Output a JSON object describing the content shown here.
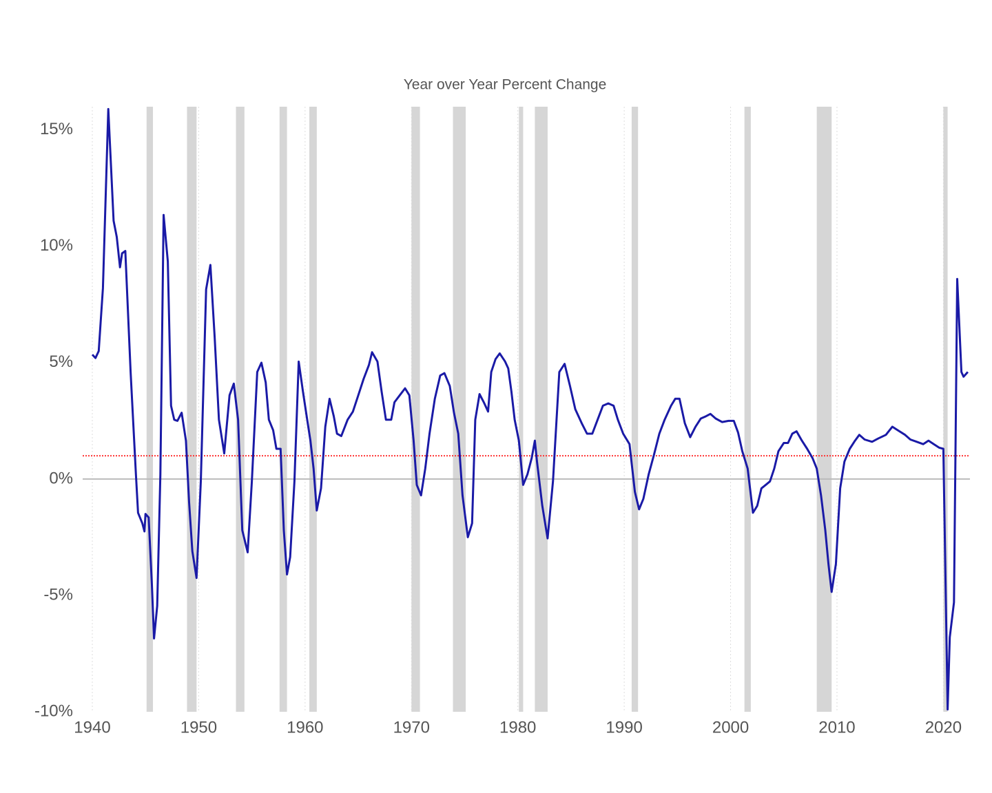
{
  "chart_data": {
    "type": "line",
    "title": "Year over Year Percent Change",
    "x": [
      1940.0,
      1940.3,
      1940.6,
      1941.0,
      1941.5,
      1942.0,
      1942.3,
      1942.6,
      1942.8,
      1943.1,
      1943.6,
      1944.1,
      1944.3,
      1944.7,
      1944.9,
      1945.0,
      1945.3,
      1945.6,
      1945.8,
      1946.1,
      1946.4,
      1946.7,
      1947.1,
      1947.4,
      1947.7,
      1948.0,
      1948.4,
      1948.8,
      1949.1,
      1949.4,
      1949.8,
      1950.2,
      1950.7,
      1951.1,
      1951.5,
      1951.9,
      1952.4,
      1952.9,
      1953.3,
      1953.7,
      1954.1,
      1954.6,
      1955.0,
      1955.5,
      1955.9,
      1956.3,
      1956.6,
      1957.0,
      1957.3,
      1957.7,
      1958.0,
      1958.3,
      1958.6,
      1959.0,
      1959.4,
      1959.8,
      1960.1,
      1960.5,
      1960.8,
      1961.1,
      1961.5,
      1961.9,
      1962.3,
      1962.7,
      1963.0,
      1963.4,
      1964.0,
      1964.5,
      1965.0,
      1965.5,
      1966.0,
      1966.3,
      1966.8,
      1967.2,
      1967.6,
      1968.1,
      1968.4,
      1968.9,
      1969.4,
      1969.8,
      1970.2,
      1970.5,
      1970.9,
      1971.3,
      1971.7,
      1972.2,
      1972.7,
      1973.1,
      1973.6,
      1974.0,
      1974.4,
      1974.8,
      1975.3,
      1975.7,
      1976.0,
      1976.4,
      1976.8,
      1977.2,
      1977.5,
      1977.9,
      1978.3,
      1978.8,
      1979.1,
      1979.4,
      1979.7,
      1980.1,
      1980.5,
      1980.9,
      1981.3,
      1981.6,
      1981.8,
      1982.3,
      1982.8,
      1983.3,
      1983.9,
      1984.4,
      1984.9,
      1985.4,
      1986.0,
      1986.5,
      1987.0,
      1987.5,
      1988.0,
      1988.5,
      1989.0,
      1989.4,
      1989.9,
      1990.5,
      1991.0,
      1991.4,
      1991.8,
      1992.3,
      1992.8,
      1993.3,
      1993.8,
      1994.4,
      1994.8,
      1995.2,
      1995.7,
      1996.2,
      1996.7,
      1997.2,
      1997.7,
      1998.1,
      1998.6,
      1999.2,
      1999.8,
      2000.3,
      2000.7,
      2001.1,
      2001.6,
      2002.1,
      2002.5,
      2002.9,
      2003.3,
      2003.7,
      2004.1,
      2004.5,
      2005.0,
      2005.4,
      2005.8,
      2006.2,
      2006.7,
      2007.2,
      2007.7,
      2008.1,
      2008.5,
      2008.9,
      2009.2,
      2009.5,
      2009.9,
      2010.3,
      2010.7,
      2011.2,
      2011.7,
      2012.1,
      2012.6,
      2013.3,
      2013.9,
      2014.6,
      2015.2,
      2015.7,
      2016.4,
      2016.9,
      2017.5,
      2018.1,
      2018.6,
      2019.1,
      2019.6,
      2020.0,
      2020.4,
      2020.6,
      2021.0,
      2021.3,
      2021.7,
      2021.9,
      2022.3
    ],
    "values": [
      5.35,
      5.2,
      5.5,
      8.2,
      15.9,
      11.1,
      10.4,
      9.1,
      9.7,
      9.8,
      4.6,
      0.2,
      -1.45,
      -1.9,
      -2.25,
      -1.5,
      -1.65,
      -4.55,
      -6.85,
      -5.45,
      0.2,
      11.35,
      9.35,
      3.15,
      2.55,
      2.5,
      2.85,
      1.65,
      -1.0,
      -3.1,
      -4.25,
      -0.1,
      8.15,
      9.2,
      6.1,
      2.55,
      1.1,
      3.6,
      4.1,
      2.55,
      -2.2,
      -3.15,
      -0.1,
      4.6,
      5.0,
      4.15,
      2.55,
      2.1,
      1.3,
      1.3,
      -2.2,
      -4.1,
      -3.35,
      -0.1,
      5.05,
      3.75,
      2.85,
      1.65,
      0.45,
      -1.35,
      -0.4,
      2.25,
      3.45,
      2.7,
      1.95,
      1.85,
      2.55,
      2.9,
      3.6,
      4.3,
      4.9,
      5.45,
      5.05,
      3.75,
      2.55,
      2.55,
      3.3,
      3.6,
      3.9,
      3.6,
      1.65,
      -0.25,
      -0.7,
      0.45,
      1.95,
      3.45,
      4.45,
      4.55,
      4.0,
      2.85,
      1.95,
      -0.7,
      -2.5,
      -1.9,
      2.55,
      3.65,
      3.3,
      2.9,
      4.6,
      5.15,
      5.4,
      5.05,
      4.75,
      3.75,
      2.55,
      1.65,
      -0.25,
      0.2,
      0.9,
      1.65,
      0.75,
      -1.15,
      -2.55,
      -0.1,
      4.6,
      4.95,
      4.0,
      3.0,
      2.4,
      1.95,
      1.95,
      2.55,
      3.15,
      3.25,
      3.15,
      2.55,
      1.95,
      1.5,
      -0.55,
      -1.3,
      -0.85,
      0.2,
      1.05,
      1.95,
      2.55,
      3.15,
      3.45,
      3.45,
      2.4,
      1.8,
      2.25,
      2.6,
      2.7,
      2.8,
      2.6,
      2.45,
      2.5,
      2.5,
      2.0,
      1.2,
      0.45,
      -1.45,
      -1.15,
      -0.4,
      -0.25,
      -0.1,
      0.45,
      1.2,
      1.55,
      1.55,
      1.95,
      2.05,
      1.65,
      1.3,
      0.9,
      0.45,
      -0.7,
      -2.2,
      -3.65,
      -4.85,
      -3.65,
      -0.4,
      0.75,
      1.3,
      1.65,
      1.9,
      1.7,
      1.6,
      1.75,
      1.9,
      2.25,
      2.1,
      1.9,
      1.7,
      1.6,
      1.5,
      1.65,
      1.5,
      1.35,
      1.3,
      -9.9,
      -6.8,
      -5.3,
      8.6,
      4.6,
      4.4,
      4.6
    ],
    "color": "#1a1aa6",
    "recessions": [
      [
        1945.1,
        1945.7
      ],
      [
        1948.9,
        1949.8
      ],
      [
        1953.5,
        1954.3
      ],
      [
        1957.6,
        1958.3
      ],
      [
        1960.4,
        1961.1
      ],
      [
        1970.0,
        1970.8
      ],
      [
        1973.9,
        1975.1
      ],
      [
        1980.1,
        1980.5
      ],
      [
        1981.6,
        1982.8
      ],
      [
        1990.7,
        1991.3
      ],
      [
        2001.3,
        2001.9
      ],
      [
        2008.1,
        2009.5
      ],
      [
        2020.0,
        2020.4
      ]
    ],
    "recession_color": "#d6d6d6",
    "reference_line": {
      "value": 1,
      "color": "#ff3333"
    },
    "xlim": [
      1940,
      2022.5
    ],
    "ylim": [
      -10,
      16
    ],
    "xticks": [
      1940,
      1950,
      1960,
      1970,
      1980,
      1990,
      2000,
      2010,
      2020
    ],
    "yticks": [
      {
        "value": -10,
        "label": "-10%"
      },
      {
        "value": -5,
        "label": "-5%"
      },
      {
        "value": 0,
        "label": "0%"
      },
      {
        "value": 5,
        "label": "5%"
      },
      {
        "value": 10,
        "label": "10%"
      },
      {
        "value": 15,
        "label": "15%"
      }
    ],
    "grid": true
  }
}
